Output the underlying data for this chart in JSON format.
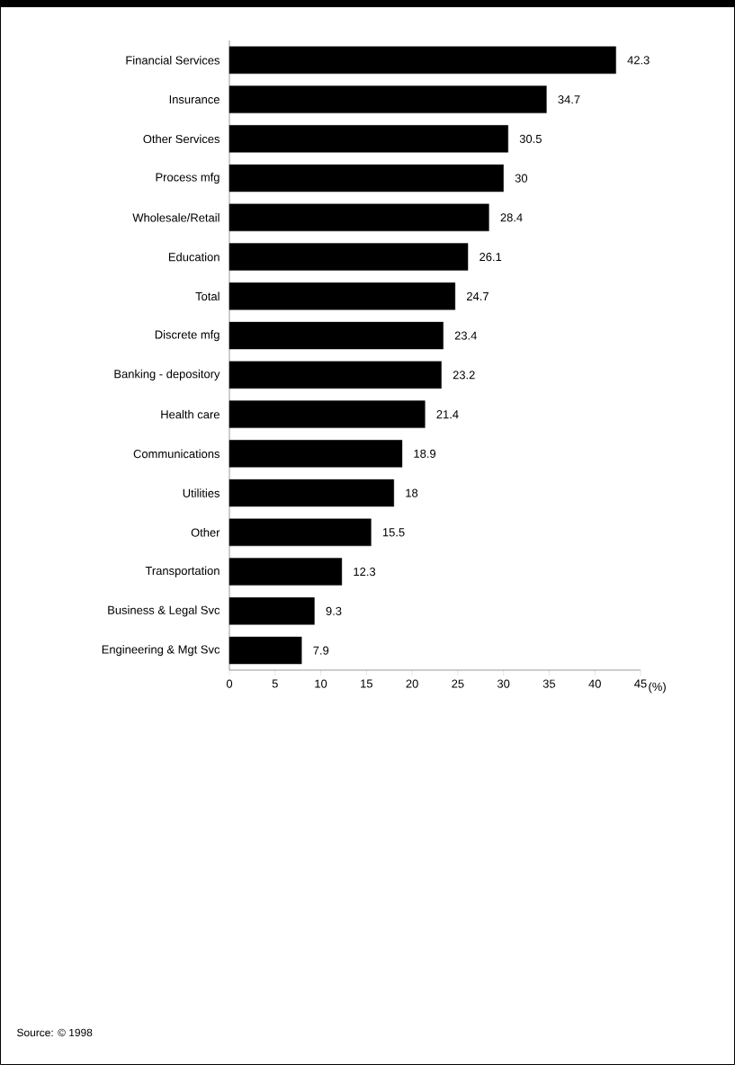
{
  "chart_data": {
    "type": "bar",
    "orientation": "horizontal",
    "categories": [
      "Financial Services",
      "Insurance",
      "Other Services",
      "Process mfg",
      "Wholesale/Retail",
      "Education",
      "Total",
      "Discrete mfg",
      "Banking - depository",
      "Health care",
      "Communications",
      "Utilities",
      "Other",
      "Transportation",
      "Business & Legal Svc",
      "Engineering & Mgt Svc"
    ],
    "values": [
      42.3,
      34.7,
      30.5,
      30,
      28.4,
      26.1,
      24.7,
      23.4,
      23.2,
      21.4,
      18.9,
      18,
      15.5,
      12.3,
      9.3,
      7.9
    ],
    "color": "#000000",
    "data_labels": true,
    "xlim": [
      0,
      45
    ],
    "xticks": [
      0,
      5,
      10,
      15,
      20,
      25,
      30,
      35,
      40,
      45
    ],
    "xlabel": "(%)",
    "grid": false,
    "annotations": [
      "Source: © 1998"
    ]
  }
}
